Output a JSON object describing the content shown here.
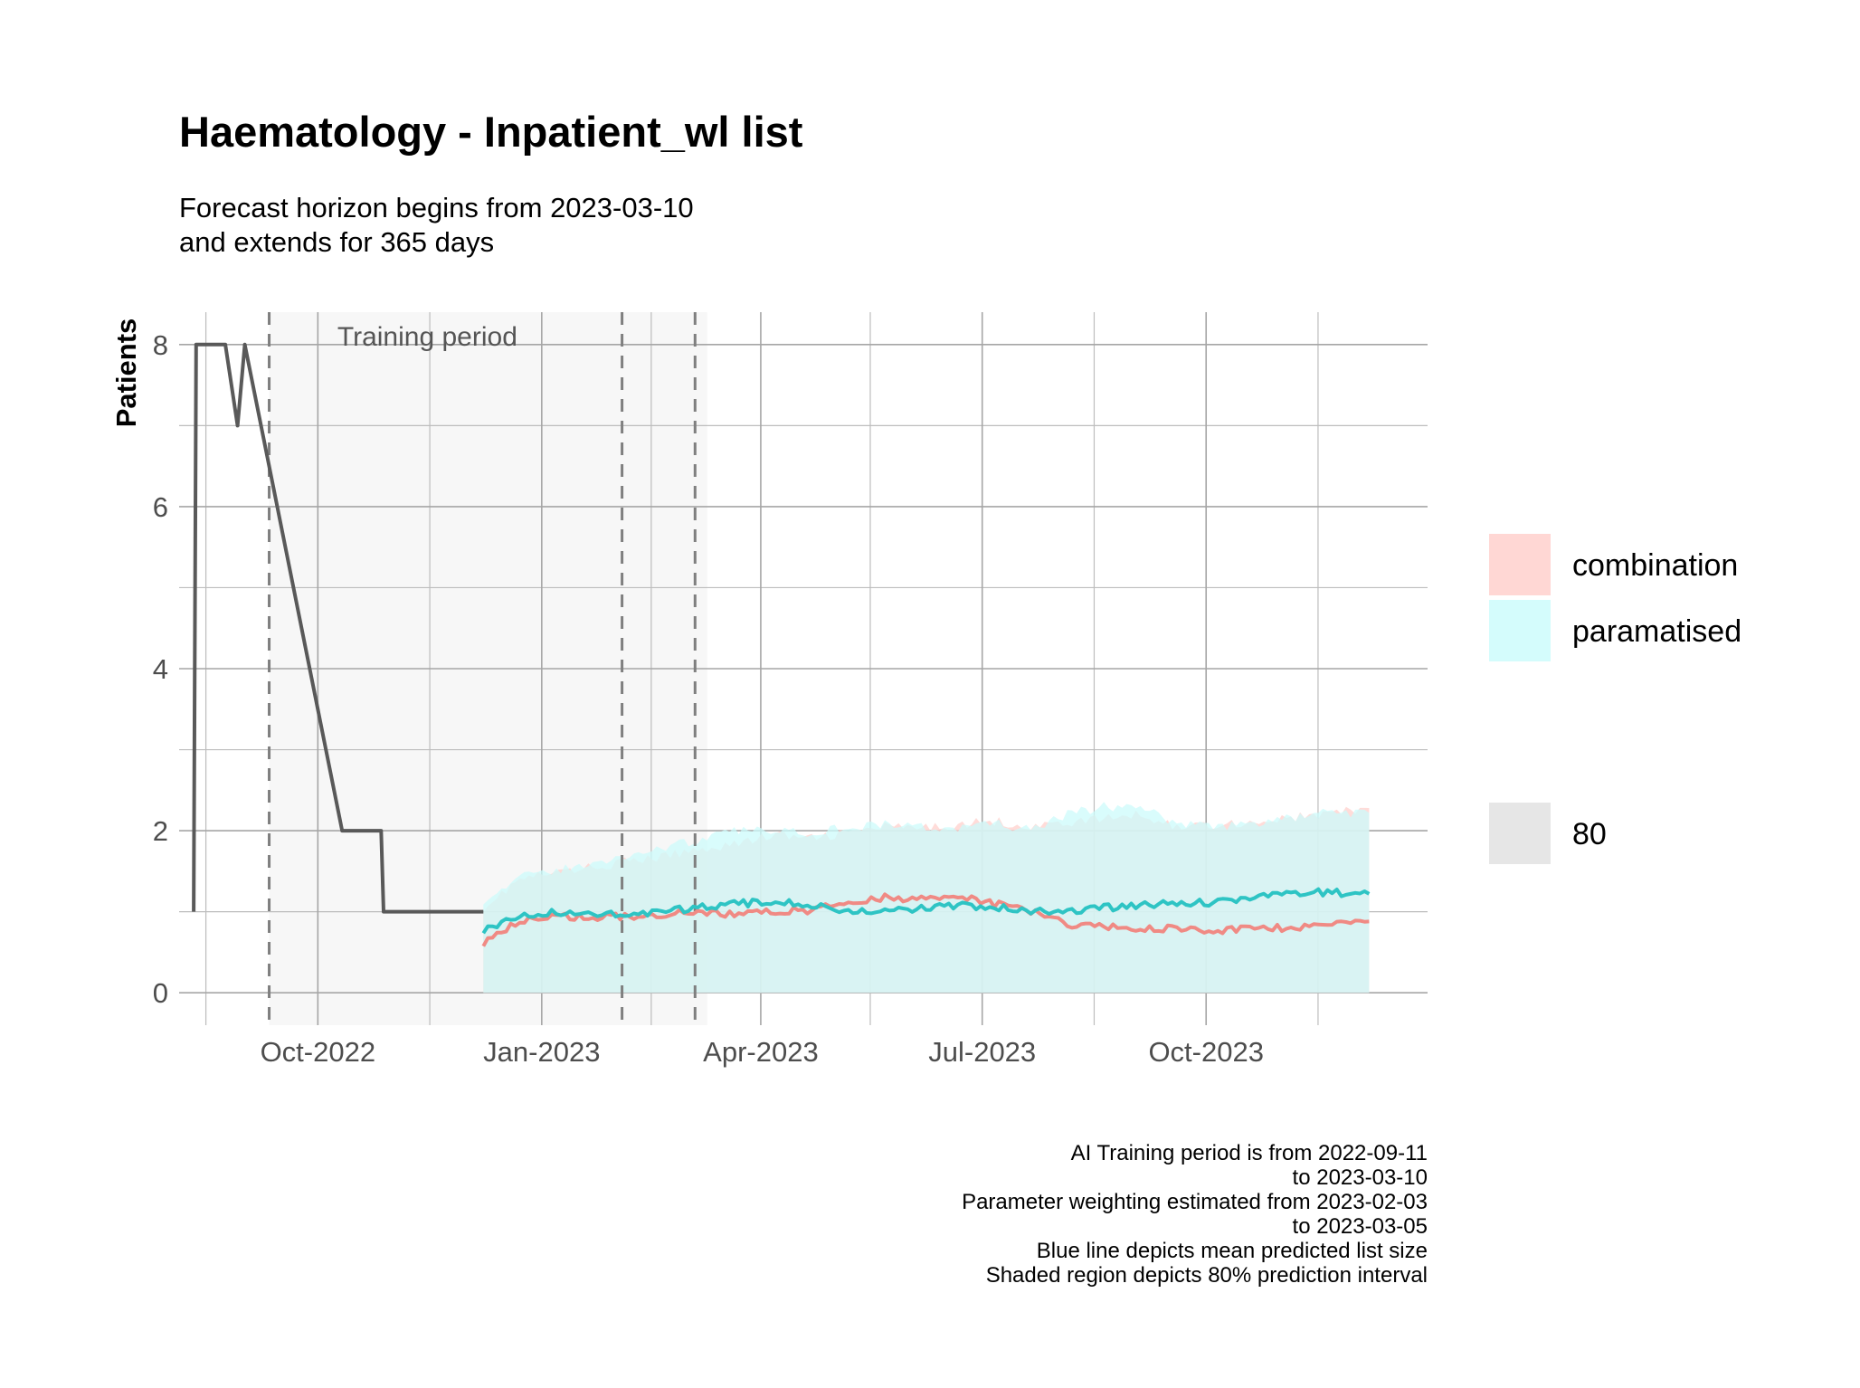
{
  "chart_data": {
    "type": "line",
    "title": "Haematology - Inpatient_wl list",
    "subtitle": [
      "Forecast horizon begins from 2023-03-10",
      "and extends for 365 days"
    ],
    "xlabel": "",
    "ylabel": "Patients",
    "xlim": [
      "2022-08-05",
      "2023-12-31"
    ],
    "ylim": [
      -0.4,
      8.4
    ],
    "x_ticks": [
      {
        "date": "2022-10-01",
        "label": "Oct-2022"
      },
      {
        "date": "2023-01-01",
        "label": "Jan-2023"
      },
      {
        "date": "2023-04-01",
        "label": "Apr-2023"
      },
      {
        "date": "2023-07-01",
        "label": "Jul-2023"
      },
      {
        "date": "2023-10-01",
        "label": "Oct-2023"
      }
    ],
    "x_minor_gridlines": [
      "2022-08-16",
      "2022-11-16",
      "2023-02-15",
      "2023-05-16",
      "2023-08-16",
      "2023-11-16"
    ],
    "y_ticks": [
      0,
      2,
      4,
      6,
      8
    ],
    "y_minor_gridlines": [
      1,
      3,
      5,
      7
    ],
    "grid": true,
    "training_period": {
      "label": "Training period",
      "start": "2022-09-11",
      "end": "2023-03-10"
    },
    "vlines": [
      "2022-09-11",
      "2023-02-03",
      "2023-03-05"
    ],
    "observed": {
      "color": "#595959",
      "points": [
        [
          "2022-08-11",
          1
        ],
        [
          "2022-08-12",
          8
        ],
        [
          "2022-08-24",
          8
        ],
        [
          "2022-08-29",
          7
        ],
        [
          "2022-09-01",
          8
        ],
        [
          "2022-10-11",
          2
        ],
        [
          "2022-10-27",
          2
        ],
        [
          "2022-10-28",
          1
        ],
        [
          "2022-12-08",
          1
        ]
      ]
    },
    "series": [
      {
        "name": "combination",
        "line_color": "#F08A84",
        "fill_color": "#FFD0CC",
        "x": [
          "2022-12-08",
          "2022-12-23",
          "2023-01-07",
          "2023-01-22",
          "2023-02-06",
          "2023-02-21",
          "2023-03-08",
          "2023-03-23",
          "2023-04-07",
          "2023-04-22",
          "2023-05-07",
          "2023-05-22",
          "2023-06-06",
          "2023-06-21",
          "2023-07-06",
          "2023-07-21",
          "2023-08-05",
          "2023-08-20",
          "2023-09-04",
          "2023-09-19",
          "2023-10-04",
          "2023-10-19",
          "2023-11-03",
          "2023-11-18",
          "2023-12-07"
        ],
        "mean": [
          0.62,
          0.88,
          0.95,
          0.92,
          0.95,
          0.97,
          1.0,
          0.97,
          1.0,
          1.02,
          1.1,
          1.18,
          1.15,
          1.18,
          1.1,
          1.0,
          0.85,
          0.82,
          0.78,
          0.8,
          0.76,
          0.78,
          0.8,
          0.84,
          0.88
        ],
        "upper": [
          1.05,
          1.4,
          1.48,
          1.55,
          1.62,
          1.68,
          1.78,
          1.85,
          1.95,
          1.9,
          1.98,
          2.05,
          2.02,
          2.08,
          2.12,
          2.05,
          2.1,
          2.15,
          2.2,
          2.05,
          2.08,
          2.1,
          2.15,
          2.2,
          2.28
        ],
        "lower": [
          0,
          0,
          0,
          0,
          0,
          0,
          0,
          0,
          0,
          0,
          0,
          0,
          0,
          0,
          0,
          0,
          0,
          0,
          0,
          0,
          0,
          0,
          0,
          0,
          0
        ]
      },
      {
        "name": "paramatised",
        "line_color": "#2EC4C4",
        "fill_color": "#CCFBFB",
        "x": [
          "2022-12-08",
          "2022-12-23",
          "2023-01-07",
          "2023-01-22",
          "2023-02-06",
          "2023-02-21",
          "2023-03-08",
          "2023-03-23",
          "2023-04-07",
          "2023-04-22",
          "2023-05-07",
          "2023-05-22",
          "2023-06-06",
          "2023-06-21",
          "2023-07-06",
          "2023-07-21",
          "2023-08-05",
          "2023-08-20",
          "2023-09-04",
          "2023-09-19",
          "2023-10-04",
          "2023-10-19",
          "2023-11-03",
          "2023-11-18",
          "2023-12-07"
        ],
        "mean": [
          0.78,
          0.95,
          1.0,
          0.98,
          0.97,
          1.02,
          1.05,
          1.1,
          1.12,
          1.08,
          1.02,
          1.0,
          1.05,
          1.08,
          1.05,
          1.02,
          1.0,
          1.05,
          1.08,
          1.1,
          1.12,
          1.18,
          1.22,
          1.24,
          1.22
        ],
        "upper": [
          1.15,
          1.42,
          1.52,
          1.58,
          1.7,
          1.8,
          1.9,
          2.0,
          2.02,
          1.98,
          2.05,
          2.08,
          2.05,
          2.02,
          2.1,
          2.0,
          2.2,
          2.3,
          2.28,
          2.1,
          2.05,
          2.08,
          2.15,
          2.22,
          2.22
        ],
        "lower": [
          0,
          0,
          0,
          0,
          0,
          0,
          0,
          0,
          0,
          0,
          0,
          0,
          0,
          0,
          0,
          0,
          0,
          0,
          0,
          0,
          0,
          0,
          0,
          0,
          0
        ]
      }
    ],
    "legend": {
      "placement": "right",
      "series_items": [
        {
          "label": "combination",
          "color": "#FFD7D4"
        },
        {
          "label": "paramatised",
          "color": "#D4FCFC"
        }
      ],
      "interval_item": {
        "label": "80",
        "color": "#E6E6E6"
      }
    },
    "caption": [
      "AI Training period is from 2022-09-11",
      "to 2023-03-10",
      "Parameter weighting estimated from 2023-02-03",
      "to 2023-03-05",
      "Blue line depicts mean predicted list size",
      "Shaded region depicts 80% prediction interval"
    ]
  }
}
